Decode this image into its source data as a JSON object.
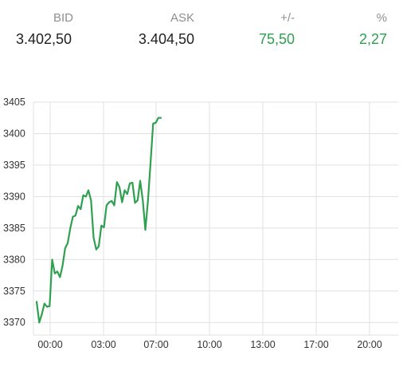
{
  "quote": {
    "bid_label": "BID",
    "bid_value": "3.402,50",
    "ask_label": "ASK",
    "ask_value": "3.404,50",
    "change_label": "+/-",
    "change_value": "75,50",
    "percent_label": "%",
    "percent_value": "2,27"
  },
  "colors": {
    "positive": "#2ea04f",
    "line": "#2ea04f",
    "grid": "#e0e0e0",
    "label": "#8f8f8f"
  },
  "chart_data": {
    "type": "line",
    "title": "",
    "xlabel": "",
    "ylabel": "",
    "x_ticks": [
      "00:00",
      "03:00",
      "07:00",
      "10:00",
      "13:00",
      "17:00",
      "20:00"
    ],
    "y_ticks": [
      3370,
      3375,
      3380,
      3385,
      3390,
      3395,
      3400,
      3405
    ],
    "ylim": [
      3368,
      3405
    ],
    "grid": true,
    "series": [
      {
        "values": [
          3373.3,
          3370.0,
          3371.3,
          3373.0,
          3372.5,
          3372.6,
          3380.0,
          3377.8,
          3378.1,
          3377.2,
          3379.0,
          3381.8,
          3382.6,
          3385.0,
          3386.8,
          3387.0,
          3388.5,
          3388.0,
          3390.2,
          3390.0,
          3391.0,
          3389.4,
          3383.5,
          3381.6,
          3382.1,
          3385.4,
          3385.1,
          3388.6,
          3389.1,
          3389.3,
          3388.6,
          3392.3,
          3391.5,
          3389.1,
          3391.0,
          3390.4,
          3392.1,
          3392.2,
          3389.0,
          3389.4,
          3392.5,
          3389.4,
          3384.7,
          3389.4,
          3395.3,
          3401.6,
          3401.7,
          3402.5,
          3402.5
        ]
      }
    ]
  }
}
